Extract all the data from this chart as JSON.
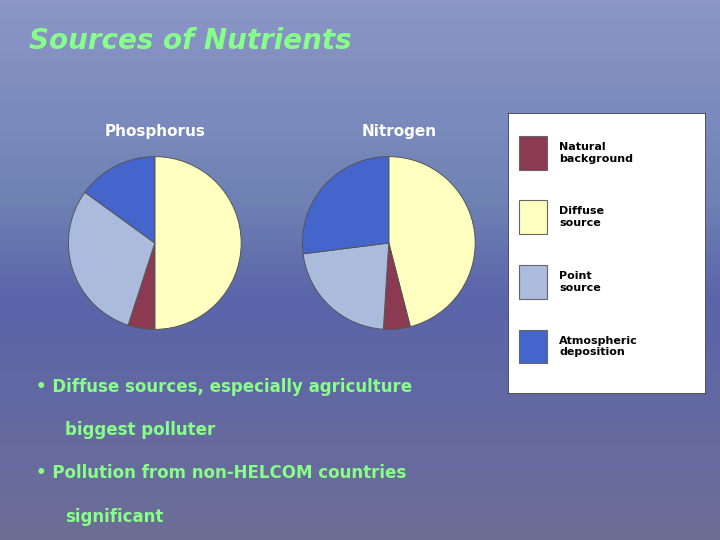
{
  "title": "Sources of Nutrients",
  "title_color": "#88ff88",
  "title_fontsize": 20,
  "phosphorus_label": "Phosphorus",
  "nitrogen_label": "Nitrogen",
  "phosphorus_values": [
    50,
    5,
    30,
    15
  ],
  "nitrogen_values": [
    46,
    5,
    22,
    27
  ],
  "colors_order": [
    "#FFFFC0",
    "#8B3A52",
    "#AABBDD",
    "#4466CC"
  ],
  "pie_labels_order": [
    "Diffuse source",
    "Natural background",
    "Point source",
    "Atmospheric deposition"
  ],
  "legend_labels": [
    "Natural\nbackground",
    "Diffuse\nsource",
    "Point\nsource",
    "Atmospheric\ndeposition"
  ],
  "legend_colors": [
    "#8B3A52",
    "#FFFFC0",
    "#AABBDD",
    "#4466CC"
  ],
  "bullet_color": "#88ff88",
  "bullet_text_1": "Diffuse sources, especially agriculture\nbiggest polluter",
  "bullet_text_2": "Pollution from non-HELCOM countries\nsignificant",
  "pie_edge_color": "#555555",
  "phosphorus_startangle": 90,
  "nitrogen_startangle": 90
}
